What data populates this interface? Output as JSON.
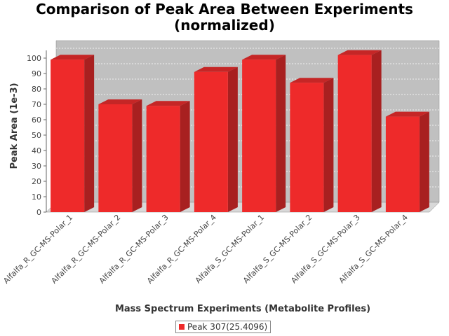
{
  "chart_data": {
    "type": "bar",
    "title_line1": "Comparison of Peak Area Between Experiments",
    "title_line2": "(normalized)",
    "xlabel": "Mass Spectrum Experiments (Metabolite Profiles)",
    "ylabel": "Peak Area (1e-3)",
    "categories": [
      "Alfalfa_R_GC-MS-Polar_1",
      "Alfalfa_R_GC-MS-Polar_2",
      "Alfalfa_R_GC-MS-Polar_3",
      "Alfalfa_R_GC-MS-Polar_4",
      "Alfalfa_S_GC-MS-Polar_1",
      "Alfalfa_S_GC-MS-Polar_2",
      "Alfalfa_S_GC-MS-Polar_3",
      "Alfalfa_S_GC-MS-Polar_4"
    ],
    "series": [
      {
        "name": "Peak 307(25.4096)",
        "values": [
          99,
          70,
          69,
          91,
          99,
          84,
          102,
          62
        ]
      }
    ],
    "ylim": [
      0,
      105
    ],
    "yticks": [
      0,
      10,
      20,
      30,
      40,
      50,
      60,
      70,
      80,
      90,
      100
    ],
    "grid": true,
    "legend_position": "bottom",
    "colors": {
      "bar_front": "#ee2a2a",
      "bar_side": "#a82020",
      "bar_top": "#c52626",
      "plot_back": "#c0c0c0",
      "plot_floor": "#d8d8d8",
      "gridline": "#ffffff",
      "axis_text": "#444444",
      "label_text": "#333333"
    }
  }
}
